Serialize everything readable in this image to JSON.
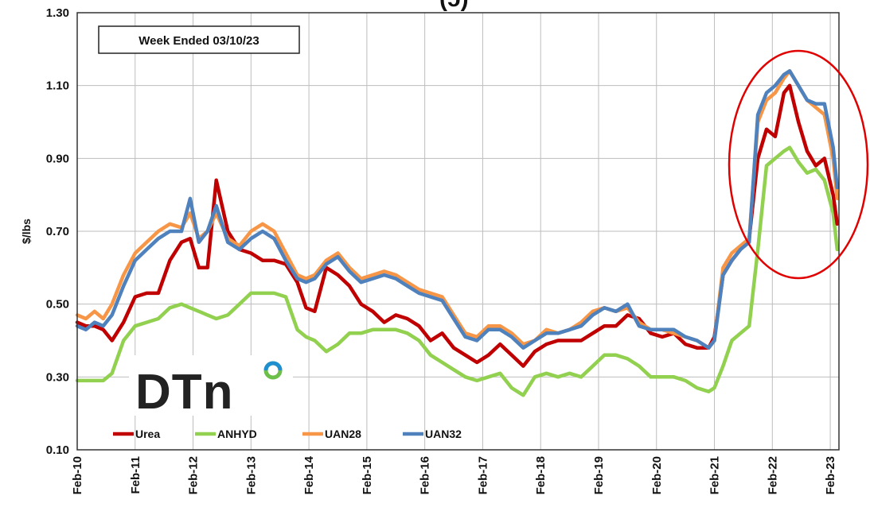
{
  "chart_data": {
    "type": "line",
    "title_fragment": "(ɔ)",
    "ylabel": "$/lbs",
    "ylim": [
      0.1,
      1.3
    ],
    "yticks": [
      "1.30",
      "1.10",
      "0.90",
      "0.70",
      "0.50",
      "0.30",
      "0.10"
    ],
    "xlim": [
      2010.0,
      2023.15
    ],
    "xticks": [
      "Feb-10",
      "Feb-11",
      "Feb-12",
      "Feb-13",
      "Feb-14",
      "Feb-15",
      "Feb-16",
      "Feb-17",
      "Feb-18",
      "Feb-19",
      "Feb-20",
      "Feb-21",
      "Feb-22",
      "Feb-23"
    ],
    "grid": true,
    "legend_position": "bottom-left",
    "annotation": "Week Ended 03/10/23",
    "highlight": "red ellipse around 2021-2023 peak",
    "logo": "DTN",
    "series": [
      {
        "name": "Urea",
        "color": "#c00000",
        "x": [
          2010.0,
          2010.15,
          2010.3,
          2010.45,
          2010.6,
          2010.8,
          2011.0,
          2011.2,
          2011.4,
          2011.6,
          2011.8,
          2011.95,
          2012.1,
          2012.25,
          2012.4,
          2012.6,
          2012.8,
          2013.0,
          2013.2,
          2013.4,
          2013.6,
          2013.8,
          2013.95,
          2014.1,
          2014.3,
          2014.5,
          2014.7,
          2014.9,
          2015.1,
          2015.3,
          2015.5,
          2015.7,
          2015.9,
          2016.1,
          2016.3,
          2016.5,
          2016.7,
          2016.9,
          2017.1,
          2017.3,
          2017.5,
          2017.7,
          2017.9,
          2018.1,
          2018.3,
          2018.5,
          2018.7,
          2018.9,
          2019.1,
          2019.3,
          2019.5,
          2019.7,
          2019.9,
          2020.1,
          2020.3,
          2020.5,
          2020.7,
          2020.9,
          2021.0,
          2021.15,
          2021.3,
          2021.45,
          2021.6,
          2021.75,
          2021.9,
          2022.05,
          2022.2,
          2022.3,
          2022.45,
          2022.6,
          2022.75,
          2022.9,
          2023.05,
          2023.12
        ],
        "values": [
          0.45,
          0.44,
          0.44,
          0.43,
          0.4,
          0.45,
          0.52,
          0.53,
          0.53,
          0.62,
          0.67,
          0.68,
          0.6,
          0.6,
          0.84,
          0.7,
          0.65,
          0.64,
          0.62,
          0.62,
          0.61,
          0.56,
          0.49,
          0.48,
          0.6,
          0.58,
          0.55,
          0.5,
          0.48,
          0.45,
          0.47,
          0.46,
          0.44,
          0.4,
          0.42,
          0.38,
          0.36,
          0.34,
          0.36,
          0.39,
          0.36,
          0.33,
          0.37,
          0.39,
          0.4,
          0.4,
          0.4,
          0.42,
          0.44,
          0.44,
          0.47,
          0.46,
          0.42,
          0.41,
          0.42,
          0.39,
          0.38,
          0.38,
          0.41,
          0.58,
          0.62,
          0.65,
          0.68,
          0.9,
          0.98,
          0.96,
          1.08,
          1.1,
          1.0,
          0.92,
          0.88,
          0.9,
          0.8,
          0.72
        ]
      },
      {
        "name": "ANHYD",
        "color": "#92d050",
        "x": [
          2010.0,
          2010.15,
          2010.3,
          2010.45,
          2010.6,
          2010.8,
          2011.0,
          2011.2,
          2011.4,
          2011.6,
          2011.8,
          2011.95,
          2012.1,
          2012.25,
          2012.4,
          2012.6,
          2012.8,
          2013.0,
          2013.2,
          2013.4,
          2013.6,
          2013.8,
          2013.95,
          2014.1,
          2014.3,
          2014.5,
          2014.7,
          2014.9,
          2015.1,
          2015.3,
          2015.5,
          2015.7,
          2015.9,
          2016.1,
          2016.3,
          2016.5,
          2016.7,
          2016.9,
          2017.1,
          2017.3,
          2017.5,
          2017.7,
          2017.9,
          2018.1,
          2018.3,
          2018.5,
          2018.7,
          2018.9,
          2019.1,
          2019.3,
          2019.5,
          2019.7,
          2019.9,
          2020.1,
          2020.3,
          2020.5,
          2020.7,
          2020.9,
          2021.0,
          2021.15,
          2021.3,
          2021.45,
          2021.6,
          2021.75,
          2021.9,
          2022.05,
          2022.2,
          2022.3,
          2022.45,
          2022.6,
          2022.75,
          2022.9,
          2023.05,
          2023.12
        ],
        "values": [
          0.29,
          0.29,
          0.29,
          0.29,
          0.31,
          0.4,
          0.44,
          0.45,
          0.46,
          0.49,
          0.5,
          0.49,
          0.48,
          0.47,
          0.46,
          0.47,
          0.5,
          0.53,
          0.53,
          0.53,
          0.52,
          0.43,
          0.41,
          0.4,
          0.37,
          0.39,
          0.42,
          0.42,
          0.43,
          0.43,
          0.43,
          0.42,
          0.4,
          0.36,
          0.34,
          0.32,
          0.3,
          0.29,
          0.3,
          0.31,
          0.27,
          0.25,
          0.3,
          0.31,
          0.3,
          0.31,
          0.3,
          0.33,
          0.36,
          0.36,
          0.35,
          0.33,
          0.3,
          0.3,
          0.3,
          0.29,
          0.27,
          0.26,
          0.27,
          0.33,
          0.4,
          0.42,
          0.44,
          0.65,
          0.88,
          0.9,
          0.92,
          0.93,
          0.89,
          0.86,
          0.87,
          0.84,
          0.75,
          0.65
        ]
      },
      {
        "name": "UAN28",
        "color": "#f79646",
        "x": [
          2010.0,
          2010.15,
          2010.3,
          2010.45,
          2010.6,
          2010.8,
          2011.0,
          2011.2,
          2011.4,
          2011.6,
          2011.8,
          2011.95,
          2012.1,
          2012.25,
          2012.4,
          2012.6,
          2012.8,
          2013.0,
          2013.2,
          2013.4,
          2013.6,
          2013.8,
          2013.95,
          2014.1,
          2014.3,
          2014.5,
          2014.7,
          2014.9,
          2015.1,
          2015.3,
          2015.5,
          2015.7,
          2015.9,
          2016.1,
          2016.3,
          2016.5,
          2016.7,
          2016.9,
          2017.1,
          2017.3,
          2017.5,
          2017.7,
          2017.9,
          2018.1,
          2018.3,
          2018.5,
          2018.7,
          2018.9,
          2019.1,
          2019.3,
          2019.5,
          2019.7,
          2019.9,
          2020.1,
          2020.3,
          2020.5,
          2020.7,
          2020.9,
          2021.0,
          2021.15,
          2021.3,
          2021.45,
          2021.6,
          2021.75,
          2021.9,
          2022.05,
          2022.2,
          2022.3,
          2022.45,
          2022.6,
          2022.75,
          2022.9,
          2023.05,
          2023.12
        ],
        "values": [
          0.47,
          0.46,
          0.48,
          0.46,
          0.5,
          0.58,
          0.64,
          0.67,
          0.7,
          0.72,
          0.71,
          0.75,
          0.68,
          0.7,
          0.75,
          0.68,
          0.66,
          0.7,
          0.72,
          0.7,
          0.64,
          0.58,
          0.57,
          0.58,
          0.62,
          0.64,
          0.6,
          0.57,
          0.58,
          0.59,
          0.58,
          0.56,
          0.54,
          0.53,
          0.52,
          0.47,
          0.42,
          0.41,
          0.44,
          0.44,
          0.42,
          0.39,
          0.4,
          0.43,
          0.42,
          0.43,
          0.45,
          0.48,
          0.49,
          0.48,
          0.49,
          0.45,
          0.43,
          0.43,
          0.42,
          0.41,
          0.4,
          0.38,
          0.4,
          0.6,
          0.64,
          0.66,
          0.68,
          1.0,
          1.06,
          1.08,
          1.12,
          1.14,
          1.1,
          1.06,
          1.04,
          1.02,
          0.9,
          0.79
        ]
      },
      {
        "name": "UAN32",
        "color": "#4f81bd",
        "x": [
          2010.0,
          2010.15,
          2010.3,
          2010.45,
          2010.6,
          2010.8,
          2011.0,
          2011.2,
          2011.4,
          2011.6,
          2011.8,
          2011.95,
          2012.1,
          2012.25,
          2012.4,
          2012.6,
          2012.8,
          2013.0,
          2013.2,
          2013.4,
          2013.6,
          2013.8,
          2013.95,
          2014.1,
          2014.3,
          2014.5,
          2014.7,
          2014.9,
          2015.1,
          2015.3,
          2015.5,
          2015.7,
          2015.9,
          2016.1,
          2016.3,
          2016.5,
          2016.7,
          2016.9,
          2017.1,
          2017.3,
          2017.5,
          2017.7,
          2017.9,
          2018.1,
          2018.3,
          2018.5,
          2018.7,
          2018.9,
          2019.1,
          2019.3,
          2019.5,
          2019.7,
          2019.9,
          2020.1,
          2020.3,
          2020.5,
          2020.7,
          2020.9,
          2021.0,
          2021.15,
          2021.3,
          2021.45,
          2021.6,
          2021.75,
          2021.9,
          2022.05,
          2022.2,
          2022.3,
          2022.45,
          2022.6,
          2022.75,
          2022.9,
          2023.05,
          2023.12
        ],
        "values": [
          0.44,
          0.43,
          0.45,
          0.44,
          0.47,
          0.55,
          0.62,
          0.65,
          0.68,
          0.7,
          0.7,
          0.79,
          0.67,
          0.7,
          0.77,
          0.67,
          0.65,
          0.68,
          0.7,
          0.68,
          0.62,
          0.57,
          0.56,
          0.57,
          0.61,
          0.63,
          0.59,
          0.56,
          0.57,
          0.58,
          0.57,
          0.55,
          0.53,
          0.52,
          0.51,
          0.46,
          0.41,
          0.4,
          0.43,
          0.43,
          0.41,
          0.38,
          0.4,
          0.42,
          0.42,
          0.43,
          0.44,
          0.47,
          0.49,
          0.48,
          0.5,
          0.44,
          0.43,
          0.43,
          0.43,
          0.41,
          0.4,
          0.38,
          0.4,
          0.58,
          0.62,
          0.65,
          0.67,
          1.02,
          1.08,
          1.1,
          1.13,
          1.14,
          1.1,
          1.06,
          1.05,
          1.05,
          0.93,
          0.82
        ]
      }
    ]
  }
}
